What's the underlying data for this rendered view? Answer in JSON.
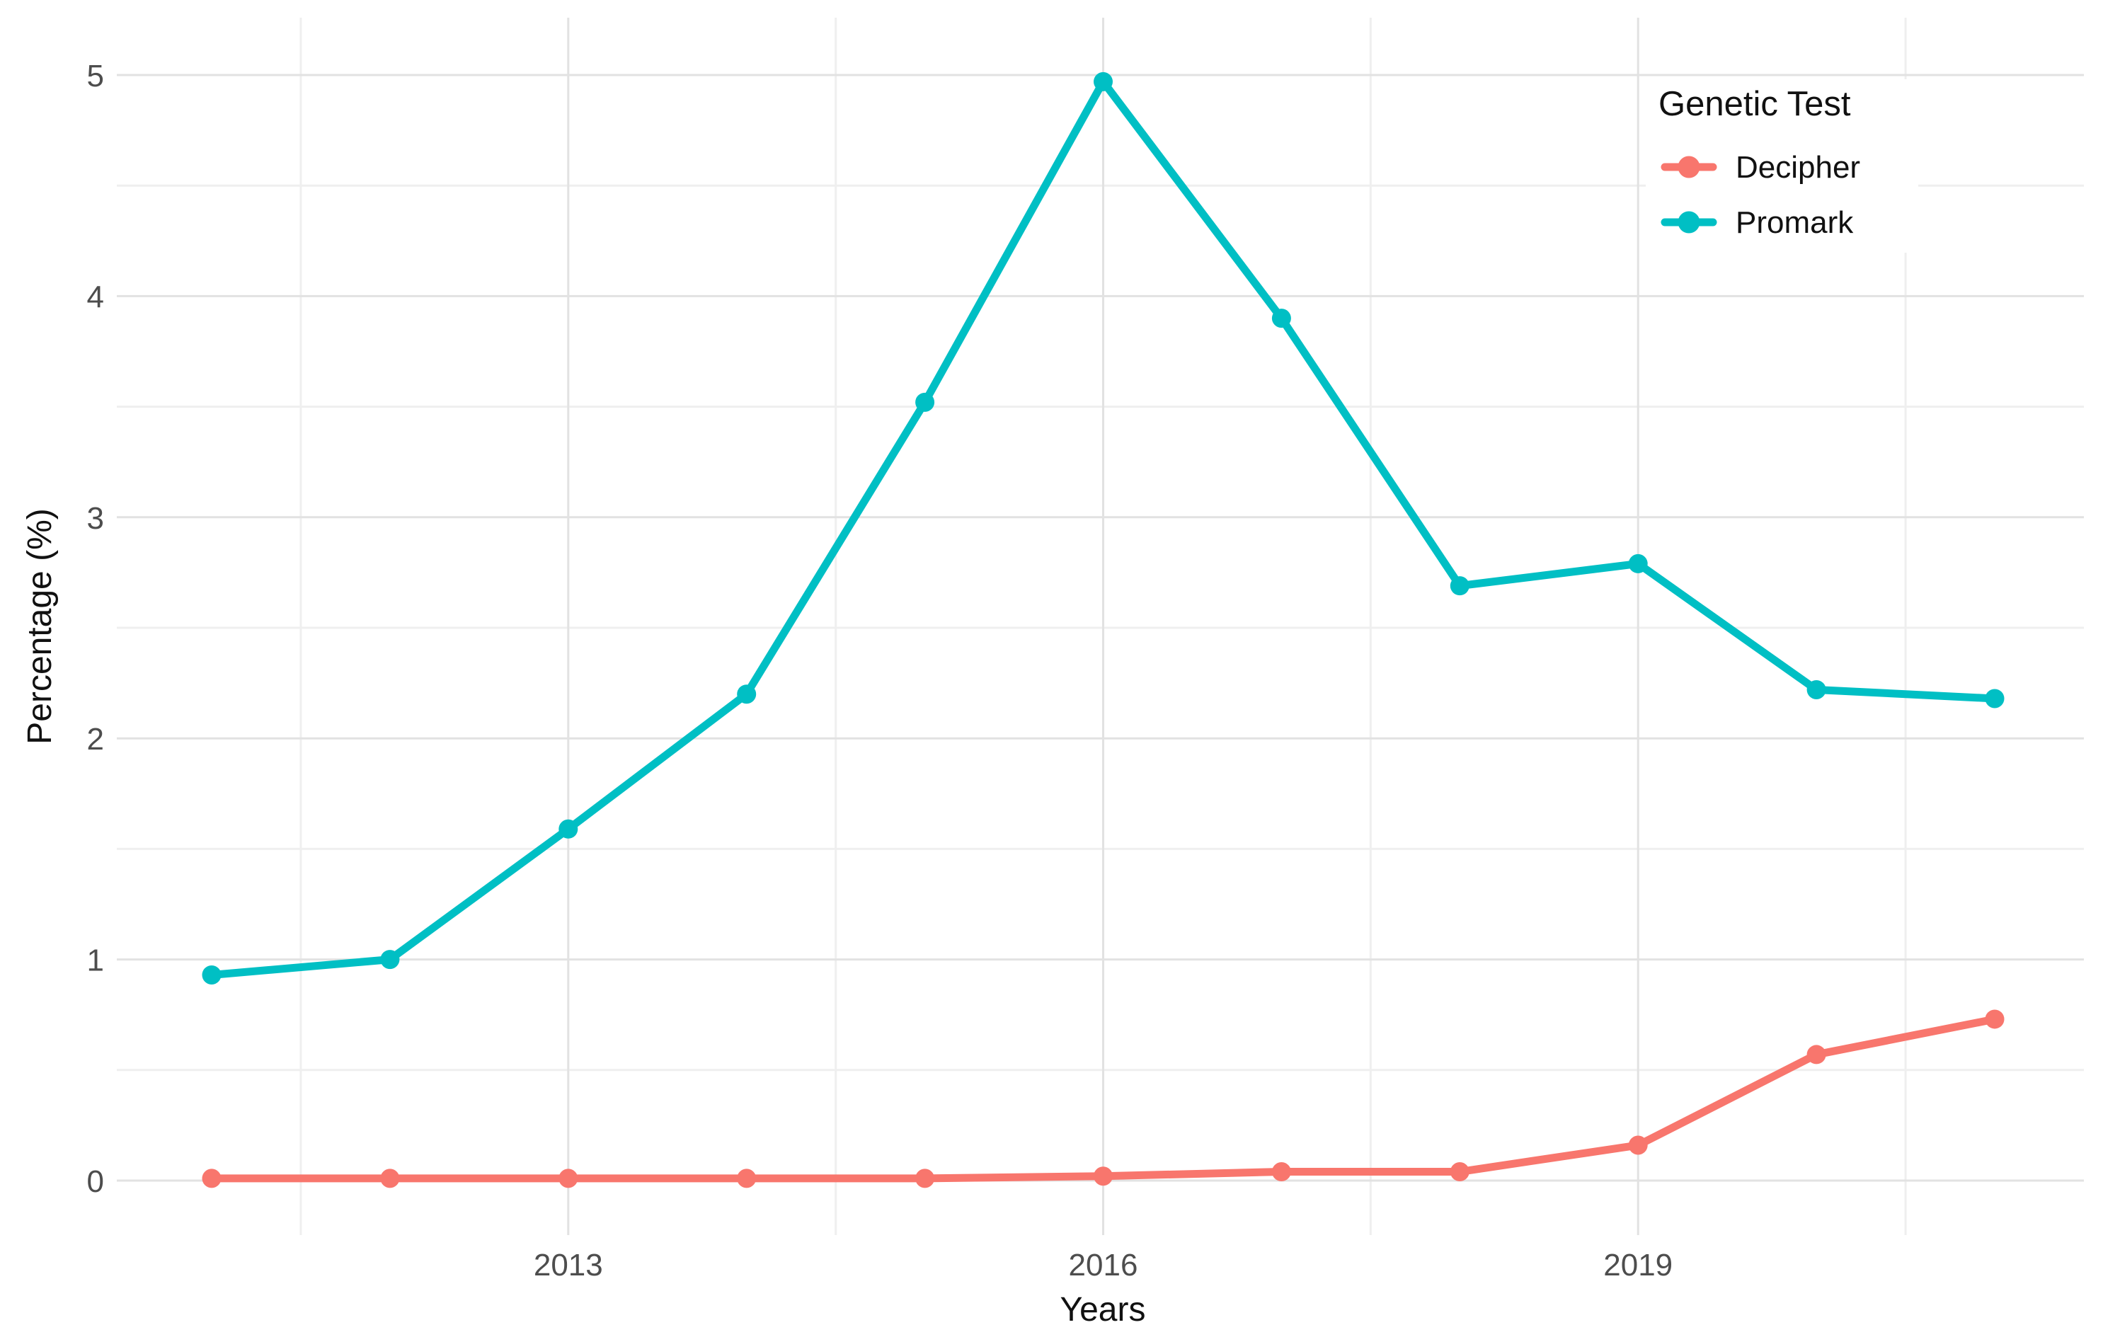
{
  "chart_data": {
    "type": "line",
    "title": "",
    "xlabel": "Years",
    "ylabel": "Percentage (%)",
    "legend_title": "Genetic Test",
    "legend_position": "top-right-inside",
    "grid": true,
    "x": [
      2011,
      2012,
      2013,
      2014,
      2015,
      2016,
      2017,
      2018,
      2019,
      2020,
      2021
    ],
    "series": [
      {
        "name": "Decipher",
        "color": "#F8766D",
        "values": [
          0.01,
          0.01,
          0.01,
          0.01,
          0.01,
          0.02,
          0.04,
          0.04,
          0.16,
          0.57,
          0.73
        ]
      },
      {
        "name": "Promark",
        "color": "#00BFC4",
        "values": [
          0.93,
          1.0,
          1.59,
          2.2,
          3.52,
          4.97,
          3.9,
          2.69,
          2.79,
          2.22,
          2.18
        ]
      }
    ],
    "x_ticks": [
      2013,
      2016,
      2019
    ],
    "x_minor": [
      2011.5,
      2014.5,
      2017.5,
      2020.5
    ],
    "y_ticks": [
      0,
      1,
      2,
      3,
      4,
      5
    ],
    "y_minor": [
      0.5,
      1.5,
      2.5,
      3.5,
      4.5
    ],
    "xlim": [
      2010.5,
      2021.5
    ],
    "ylim": [
      0,
      5
    ]
  },
  "colors": {
    "background": "#ffffff",
    "grid_major": "#e2e2e2",
    "grid_minor": "#efefef",
    "tick_text": "#4d4d4d",
    "title_text": "#111111"
  }
}
